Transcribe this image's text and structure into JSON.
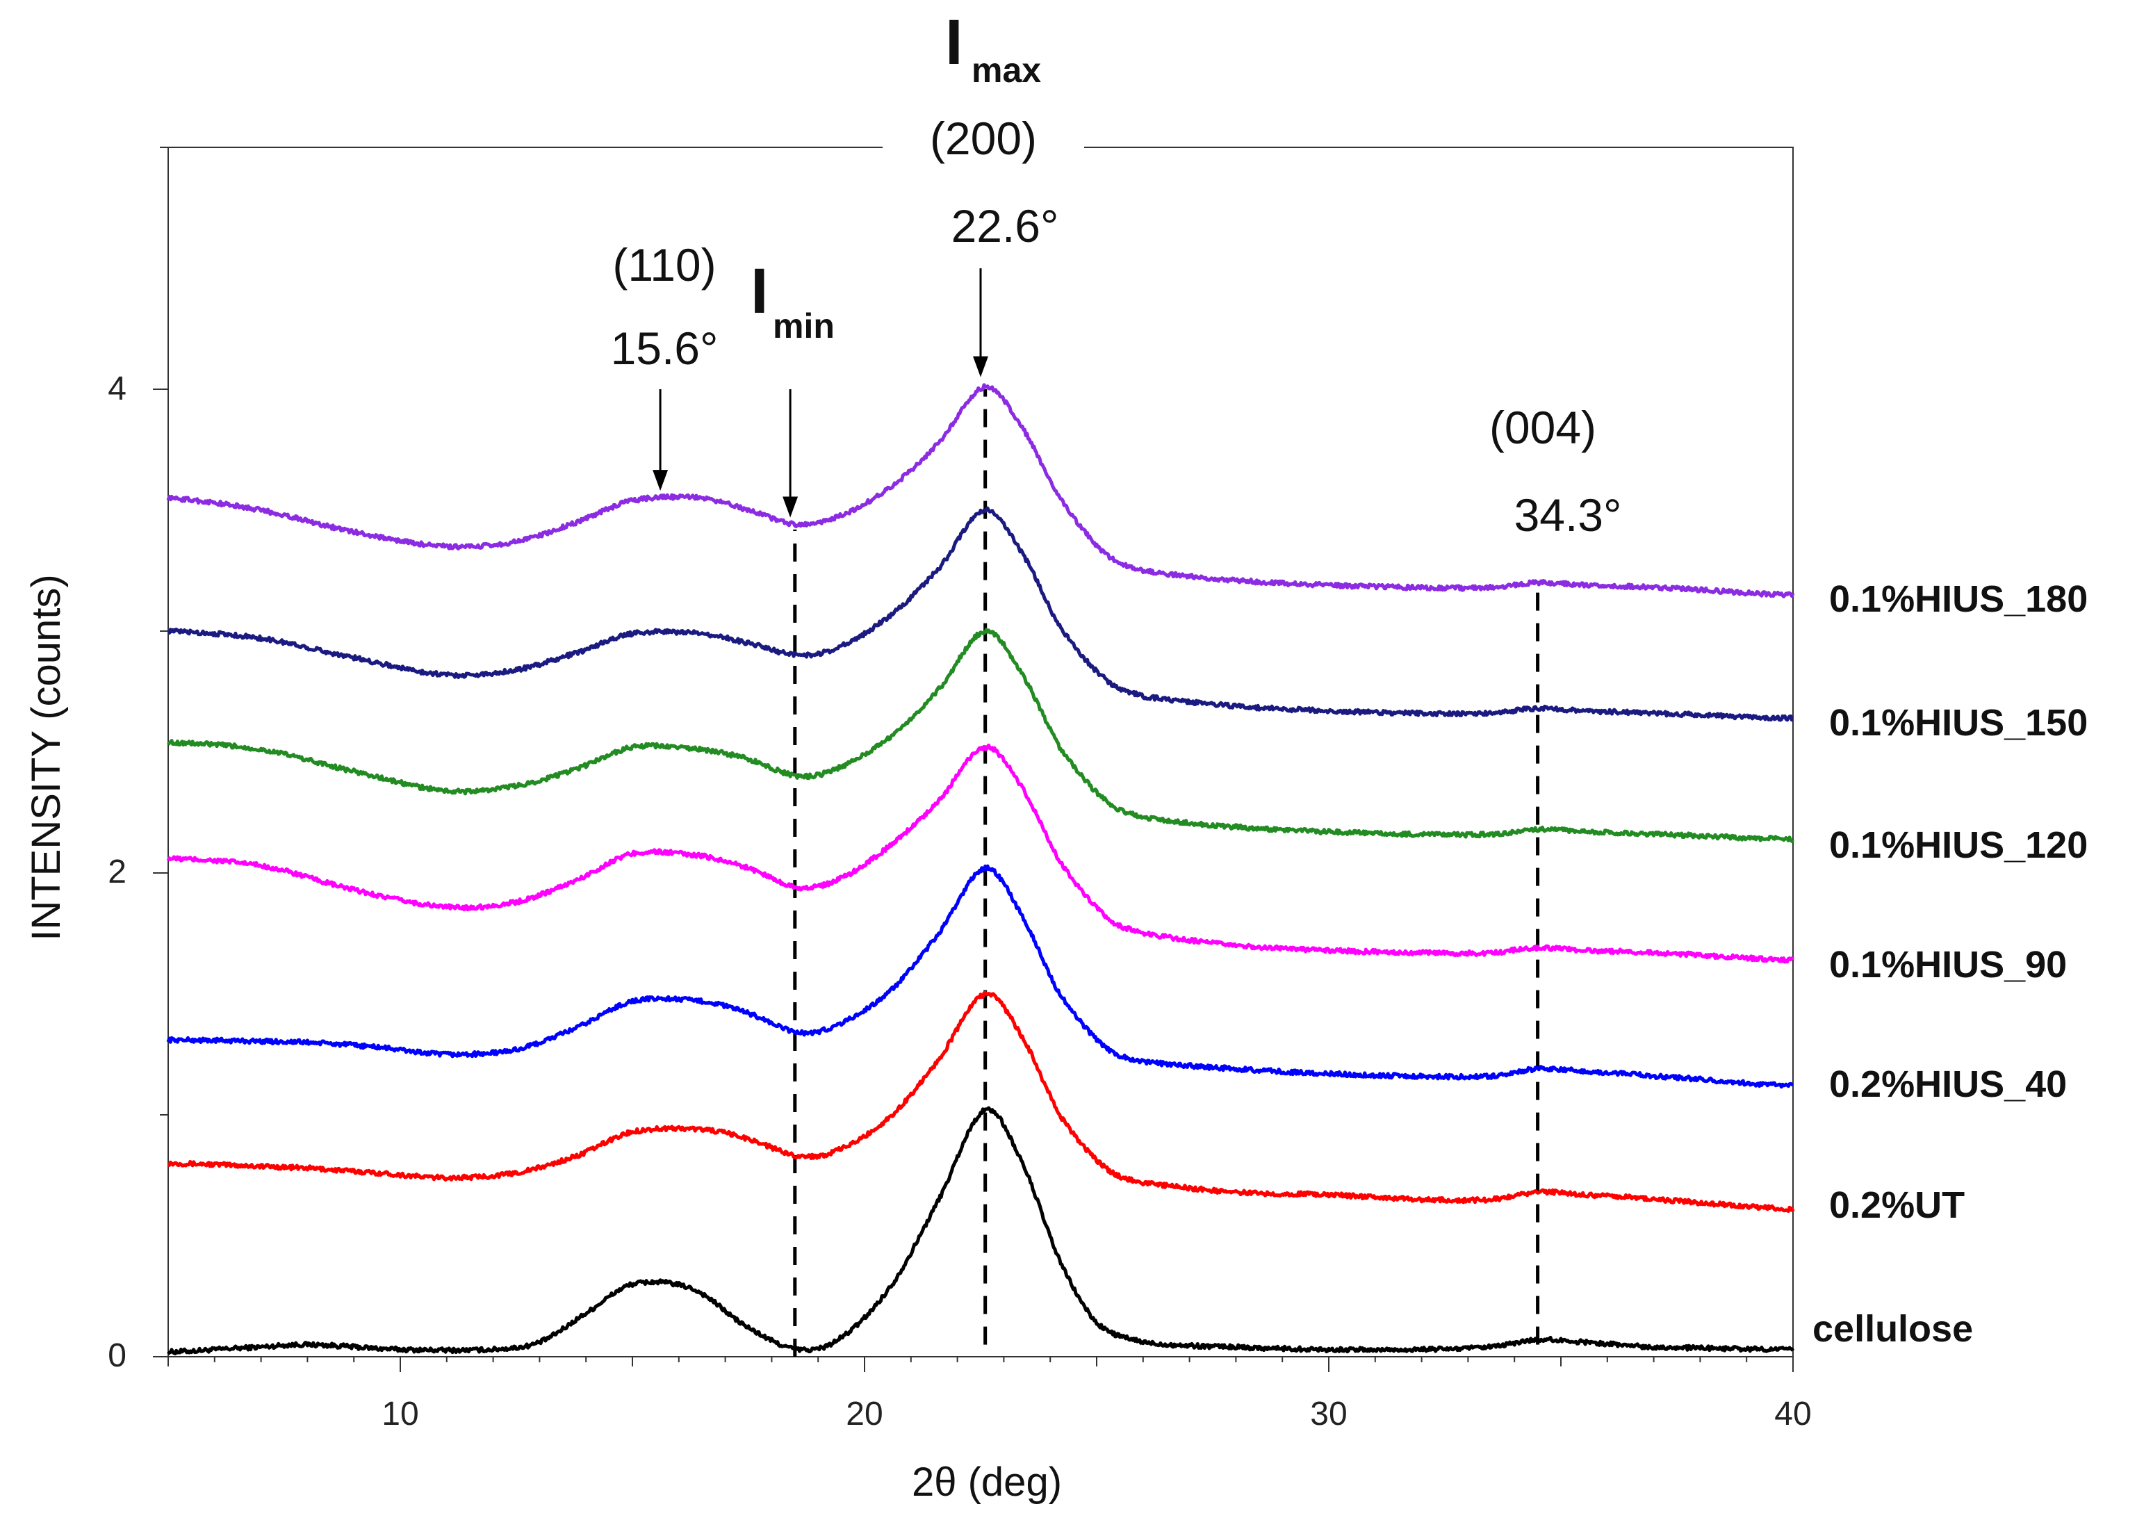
{
  "chart_data": {
    "type": "line",
    "xlabel": "2θ (deg)",
    "ylabel": "INTENSITY (counts)",
    "xlim": [
      5,
      40
    ],
    "ylim": [
      0,
      5
    ],
    "xticks": [
      10,
      20,
      30,
      40
    ],
    "xtick_labels": [
      "10",
      "20",
      "30",
      "40"
    ],
    "yticks": [
      0,
      2,
      4
    ],
    "ytick_labels": [
      "0",
      "2",
      "4"
    ],
    "grid": false,
    "series": [
      {
        "name": "cellulose",
        "color": "#000000",
        "points": [
          [
            5,
            0.02
          ],
          [
            7,
            0.04
          ],
          [
            8,
            0.05
          ],
          [
            10,
            0.03
          ],
          [
            12,
            0.03
          ],
          [
            13,
            0.06
          ],
          [
            14,
            0.18
          ],
          [
            15,
            0.3
          ],
          [
            16.3,
            0.28
          ],
          [
            17.5,
            0.12
          ],
          [
            18.6,
            0.03
          ],
          [
            19.5,
            0.08
          ],
          [
            20.6,
            0.3
          ],
          [
            21.6,
            0.65
          ],
          [
            22.6,
            1.02
          ],
          [
            23.4,
            0.8
          ],
          [
            24.2,
            0.4
          ],
          [
            25,
            0.14
          ],
          [
            26,
            0.06
          ],
          [
            28,
            0.04
          ],
          [
            30,
            0.03
          ],
          [
            32,
            0.03
          ],
          [
            33.5,
            0.04
          ],
          [
            34.5,
            0.07
          ],
          [
            35.5,
            0.06
          ],
          [
            37,
            0.04
          ],
          [
            40,
            0.03
          ]
        ]
      },
      {
        "name": "0.2%UT",
        "color": "#ff0000",
        "points": [
          [
            5,
            0.8
          ],
          [
            8,
            0.78
          ],
          [
            9.5,
            0.76
          ],
          [
            11,
            0.74
          ],
          [
            12.5,
            0.76
          ],
          [
            13.8,
            0.83
          ],
          [
            15,
            0.93
          ],
          [
            16.5,
            0.94
          ],
          [
            17.5,
            0.9
          ],
          [
            18.6,
            0.83
          ],
          [
            19.5,
            0.86
          ],
          [
            20.6,
            1.0
          ],
          [
            21.6,
            1.23
          ],
          [
            22.6,
            1.5
          ],
          [
            23.4,
            1.32
          ],
          [
            24.2,
            1.0
          ],
          [
            25.2,
            0.78
          ],
          [
            26,
            0.72
          ],
          [
            28,
            0.68
          ],
          [
            30,
            0.67
          ],
          [
            32,
            0.65
          ],
          [
            33.5,
            0.65
          ],
          [
            34.5,
            0.68
          ],
          [
            35.5,
            0.67
          ],
          [
            37,
            0.65
          ],
          [
            40,
            0.61
          ]
        ]
      },
      {
        "name": "0.2%HIUS_40",
        "color": "#0000ff",
        "points": [
          [
            5,
            1.31
          ],
          [
            8,
            1.3
          ],
          [
            9.5,
            1.28
          ],
          [
            11,
            1.25
          ],
          [
            12.5,
            1.27
          ],
          [
            13.8,
            1.36
          ],
          [
            15,
            1.47
          ],
          [
            16.5,
            1.47
          ],
          [
            17.5,
            1.42
          ],
          [
            18.6,
            1.34
          ],
          [
            19.5,
            1.38
          ],
          [
            20.6,
            1.52
          ],
          [
            21.6,
            1.75
          ],
          [
            22.6,
            2.02
          ],
          [
            23.4,
            1.82
          ],
          [
            24.2,
            1.5
          ],
          [
            25.2,
            1.28
          ],
          [
            26,
            1.22
          ],
          [
            28,
            1.19
          ],
          [
            30,
            1.17
          ],
          [
            32,
            1.16
          ],
          [
            33.5,
            1.16
          ],
          [
            34.5,
            1.19
          ],
          [
            35.5,
            1.18
          ],
          [
            37,
            1.16
          ],
          [
            40,
            1.12
          ]
        ]
      },
      {
        "name": "0.1%HIUS_90",
        "color": "#ff00ff",
        "points": [
          [
            5,
            2.06
          ],
          [
            7,
            2.03
          ],
          [
            9,
            1.93
          ],
          [
            11,
            1.86
          ],
          [
            12.5,
            1.88
          ],
          [
            13.8,
            1.97
          ],
          [
            15,
            2.08
          ],
          [
            16.5,
            2.07
          ],
          [
            17.5,
            2.02
          ],
          [
            18.6,
            1.94
          ],
          [
            19.5,
            1.98
          ],
          [
            20.6,
            2.12
          ],
          [
            21.6,
            2.3
          ],
          [
            22.6,
            2.52
          ],
          [
            23.4,
            2.35
          ],
          [
            24.2,
            2.05
          ],
          [
            25.2,
            1.82
          ],
          [
            26,
            1.75
          ],
          [
            28,
            1.7
          ],
          [
            30,
            1.68
          ],
          [
            32,
            1.67
          ],
          [
            33.5,
            1.67
          ],
          [
            34.5,
            1.69
          ],
          [
            35.5,
            1.68
          ],
          [
            37,
            1.67
          ],
          [
            40,
            1.64
          ]
        ]
      },
      {
        "name": "0.1%HIUS_120",
        "color": "#228b22",
        "points": [
          [
            5,
            2.54
          ],
          [
            7,
            2.51
          ],
          [
            9,
            2.42
          ],
          [
            11,
            2.34
          ],
          [
            12.5,
            2.36
          ],
          [
            13.8,
            2.43
          ],
          [
            15,
            2.52
          ],
          [
            16.5,
            2.51
          ],
          [
            17.5,
            2.47
          ],
          [
            18.6,
            2.4
          ],
          [
            19.5,
            2.44
          ],
          [
            20.6,
            2.57
          ],
          [
            21.6,
            2.76
          ],
          [
            22.6,
            3.0
          ],
          [
            23.4,
            2.82
          ],
          [
            24.2,
            2.52
          ],
          [
            25.2,
            2.3
          ],
          [
            26,
            2.23
          ],
          [
            28,
            2.19
          ],
          [
            30,
            2.17
          ],
          [
            32,
            2.16
          ],
          [
            33.5,
            2.16
          ],
          [
            34.5,
            2.18
          ],
          [
            35.5,
            2.17
          ],
          [
            37,
            2.16
          ],
          [
            40,
            2.14
          ]
        ]
      },
      {
        "name": "0.1%HIUS_150",
        "color": "#1a1a80",
        "points": [
          [
            5,
            3.0
          ],
          [
            7,
            2.97
          ],
          [
            9,
            2.89
          ],
          [
            11,
            2.82
          ],
          [
            12.5,
            2.84
          ],
          [
            13.8,
            2.91
          ],
          [
            15,
            2.99
          ],
          [
            16.5,
            2.99
          ],
          [
            17.5,
            2.95
          ],
          [
            18.6,
            2.9
          ],
          [
            19.5,
            2.94
          ],
          [
            20.6,
            3.07
          ],
          [
            21.6,
            3.26
          ],
          [
            22.6,
            3.5
          ],
          [
            23.4,
            3.32
          ],
          [
            24.2,
            3.02
          ],
          [
            25.2,
            2.8
          ],
          [
            26,
            2.73
          ],
          [
            28,
            2.69
          ],
          [
            30,
            2.67
          ],
          [
            32,
            2.66
          ],
          [
            33.5,
            2.66
          ],
          [
            34.5,
            2.68
          ],
          [
            35.5,
            2.67
          ],
          [
            37,
            2.66
          ],
          [
            40,
            2.64
          ]
        ]
      },
      {
        "name": "0.1%HIUS_180",
        "color": "#8b2be2",
        "points": [
          [
            5,
            3.55
          ],
          [
            7,
            3.5
          ],
          [
            9,
            3.41
          ],
          [
            11,
            3.35
          ],
          [
            12.5,
            3.37
          ],
          [
            13.8,
            3.45
          ],
          [
            15,
            3.54
          ],
          [
            16.5,
            3.55
          ],
          [
            17.5,
            3.5
          ],
          [
            18.6,
            3.44
          ],
          [
            19.5,
            3.48
          ],
          [
            20.6,
            3.6
          ],
          [
            21.6,
            3.78
          ],
          [
            22.6,
            4.01
          ],
          [
            23.4,
            3.84
          ],
          [
            24.2,
            3.55
          ],
          [
            25.2,
            3.32
          ],
          [
            26,
            3.25
          ],
          [
            28,
            3.21
          ],
          [
            30,
            3.19
          ],
          [
            32,
            3.18
          ],
          [
            33.5,
            3.18
          ],
          [
            34.5,
            3.2
          ],
          [
            35.5,
            3.19
          ],
          [
            37,
            3.18
          ],
          [
            40,
            3.15
          ]
        ]
      }
    ],
    "vlines": [
      {
        "name": "vline-imin",
        "x": 18.5,
        "y_from": 0.0,
        "y_to": 3.42
      },
      {
        "name": "vline-imax",
        "x": 22.6,
        "y_from": 0.05,
        "y_to": 4.0
      },
      {
        "name": "vline-004",
        "x": 34.5,
        "y_from": 0.05,
        "y_to": 3.2
      }
    ],
    "arrows": [
      {
        "name": "arrow-110",
        "x": 15.6,
        "y_from": 4.0,
        "y_to": 3.58
      },
      {
        "name": "arrow-imin",
        "x": 18.4,
        "y_from": 4.0,
        "y_to": 3.47
      },
      {
        "name": "arrow-imax",
        "x": 22.5,
        "y_from": 4.5,
        "y_to": 4.05
      }
    ]
  },
  "annotations": {
    "imax_main": "I",
    "imax_sub": "max",
    "peak_200": "(200)",
    "peak_200_angle": "22.6°",
    "peak_110": "(110)",
    "peak_110_angle": "15.6°",
    "imin_main": "I",
    "imin_sub": "min",
    "peak_004": "(004)",
    "peak_004_angle": "34.3°"
  }
}
